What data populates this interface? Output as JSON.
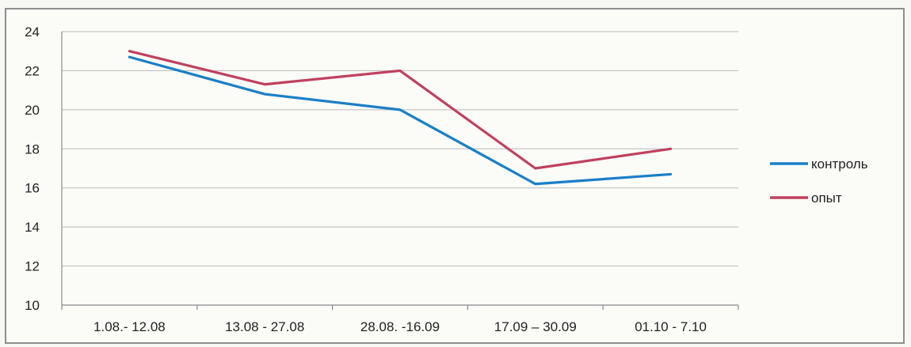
{
  "chart_data": {
    "type": "line",
    "categories": [
      "1.08.- 12.08",
      "13.08 - 27.08",
      "28.08. -16.09",
      "17.09 – 30.09",
      "01.10 - 7.10"
    ],
    "series": [
      {
        "name": "контроль",
        "color": "#1a7fc7",
        "values": [
          22.7,
          20.8,
          20.0,
          16.2,
          16.7
        ]
      },
      {
        "name": "опыт",
        "color": "#c0405e",
        "values": [
          23.0,
          21.3,
          22.0,
          17.0,
          18.0
        ]
      }
    ],
    "y_ticks": [
      10,
      12,
      14,
      16,
      18,
      20,
      22,
      24
    ],
    "ylim": [
      10,
      24
    ],
    "grid": true,
    "legend_position": "right"
  }
}
